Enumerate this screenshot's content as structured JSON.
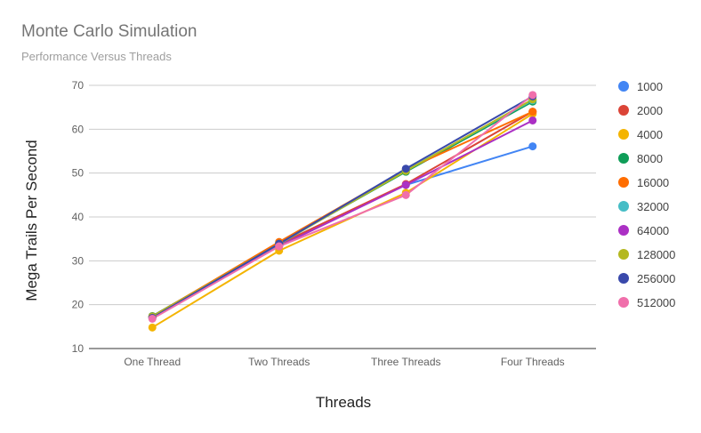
{
  "chart_data": {
    "type": "line",
    "title": "Monte Carlo Simulation",
    "subtitle": "Performance Versus Threads",
    "xlabel": "Threads",
    "ylabel": "Mega Trails Per Second",
    "categories": [
      "One Thread",
      "Two Threads",
      "Three Threads",
      "Four Threads"
    ],
    "ylim": [
      10,
      70
    ],
    "yticks": [
      10,
      20,
      30,
      40,
      50,
      60,
      70
    ],
    "grid": true,
    "legend_position": "right",
    "series": [
      {
        "name": "1000",
        "color": "#4285f4",
        "values": [
          17.3,
          33.5,
          47.3,
          56.1
        ]
      },
      {
        "name": "2000",
        "color": "#db4437",
        "values": [
          17.2,
          33.8,
          47.5,
          64.0
        ]
      },
      {
        "name": "4000",
        "color": "#f4b400",
        "values": [
          14.8,
          32.3,
          45.5,
          63.5
        ]
      },
      {
        "name": "8000",
        "color": "#0f9d58",
        "values": [
          17.4,
          34.0,
          50.3,
          66.3
        ]
      },
      {
        "name": "16000",
        "color": "#ff6d00",
        "values": [
          17.3,
          34.3,
          50.8,
          64.0
        ]
      },
      {
        "name": "32000",
        "color": "#46bdc6",
        "values": [
          17.1,
          33.8,
          50.6,
          66.6
        ]
      },
      {
        "name": "64000",
        "color": "#ab30c4",
        "values": [
          17.2,
          33.3,
          47.3,
          62.0
        ]
      },
      {
        "name": "128000",
        "color": "#b4b820",
        "values": [
          17.3,
          33.9,
          50.5,
          66.8
        ]
      },
      {
        "name": "256000",
        "color": "#3949ab",
        "values": [
          17.0,
          33.9,
          51.0,
          67.5
        ]
      },
      {
        "name": "512000",
        "color": "#f06fab",
        "values": [
          16.8,
          33.3,
          45.0,
          67.8
        ]
      }
    ]
  }
}
